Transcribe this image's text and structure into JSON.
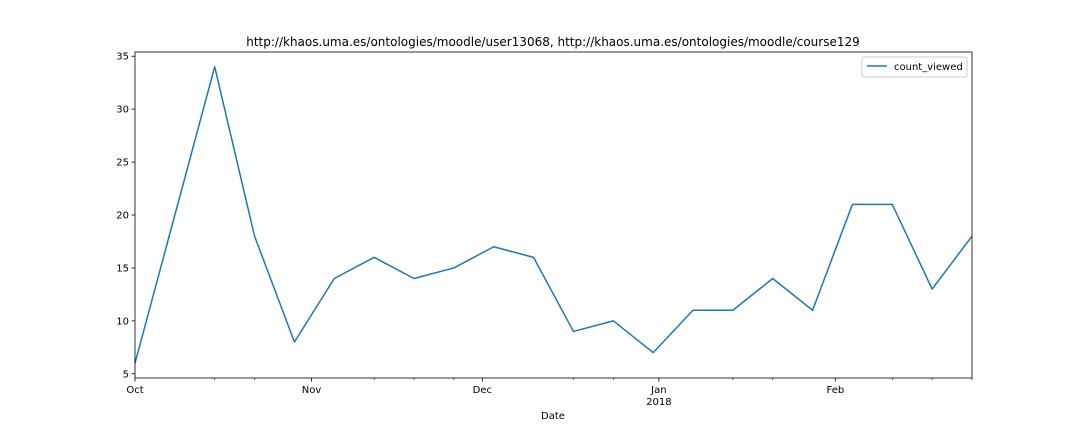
{
  "chart_data": {
    "type": "line",
    "title": "http://khaos.uma.es/ontologies/moodle/user13068, http://khaos.uma.es/ontologies/moodle/course129",
    "xlabel": "Date",
    "ylabel": "",
    "x": [
      "2017-10-01",
      "2017-10-08",
      "2017-10-15",
      "2017-10-22",
      "2017-10-29",
      "2017-11-05",
      "2017-11-12",
      "2017-11-19",
      "2017-11-26",
      "2017-12-03",
      "2017-12-10",
      "2017-12-17",
      "2017-12-24",
      "2017-12-31",
      "2018-01-07",
      "2018-01-14",
      "2018-01-21",
      "2018-01-28",
      "2018-02-04",
      "2018-02-11",
      "2018-02-18",
      "2018-02-25"
    ],
    "series": [
      {
        "name": "count_viewed",
        "values": [
          6,
          20,
          34,
          18,
          8,
          14,
          16,
          14,
          15,
          17,
          16,
          9,
          10,
          7,
          11,
          11,
          14,
          11,
          21,
          21,
          13,
          18
        ],
        "color": "#1f77b4"
      }
    ],
    "xlim": [
      "2017-10-01",
      "2018-02-25"
    ],
    "ylim": [
      4.6,
      35.4
    ],
    "yticks": [
      5,
      10,
      15,
      20,
      25,
      30,
      35
    ],
    "xticks_major": [
      {
        "date": "2017-10-01",
        "label": "Oct",
        "sublabel": ""
      },
      {
        "date": "2017-11-01",
        "label": "Nov",
        "sublabel": ""
      },
      {
        "date": "2017-12-01",
        "label": "Dec",
        "sublabel": ""
      },
      {
        "date": "2018-01-01",
        "label": "Jan",
        "sublabel": "2018"
      },
      {
        "date": "2018-02-01",
        "label": "Feb",
        "sublabel": ""
      }
    ],
    "xticks_minor": [
      "2017-10-15",
      "2017-10-22",
      "2017-11-12",
      "2017-11-19",
      "2017-11-26",
      "2017-12-17",
      "2017-12-24",
      "2018-01-14",
      "2018-01-21",
      "2018-02-11",
      "2018-02-18",
      "2018-02-25"
    ],
    "legend_position": "top-right",
    "grid": false
  }
}
